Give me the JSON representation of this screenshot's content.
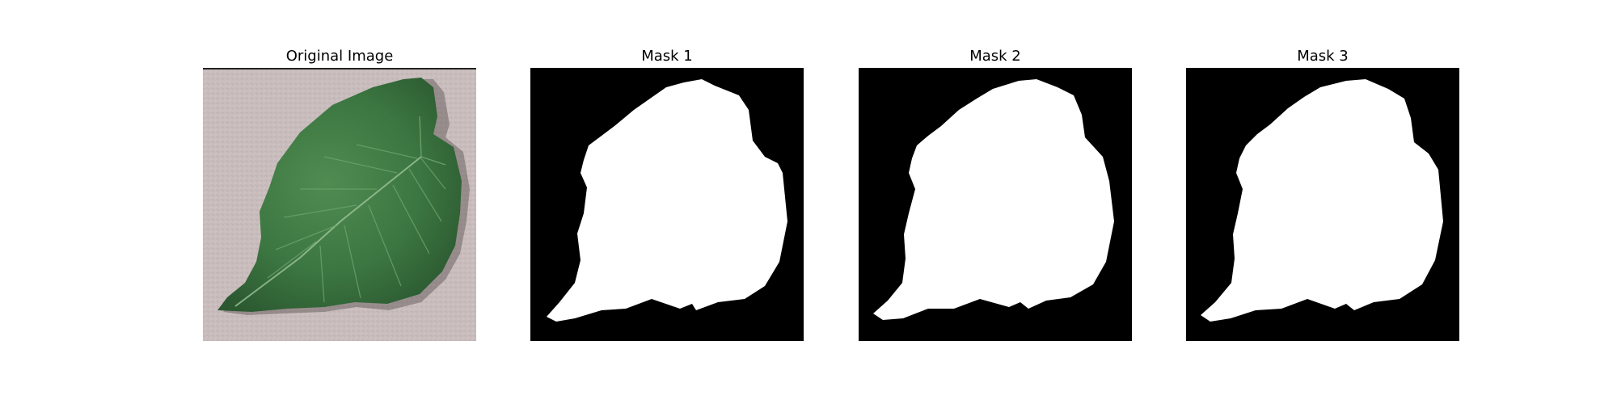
{
  "figure": {
    "panels": [
      {
        "title": "Original Image",
        "kind": "photo",
        "subject": "leaf-photo"
      },
      {
        "title": "Mask 1",
        "kind": "mask",
        "subject": "leaf-mask"
      },
      {
        "title": "Mask 2",
        "kind": "mask",
        "subject": "leaf-mask"
      },
      {
        "title": "Mask 3",
        "kind": "mask",
        "subject": "leaf-mask"
      }
    ],
    "colors": {
      "background": "#ffffff",
      "mask_background": "#000000",
      "mask_foreground": "#ffffff",
      "photo_background": "#c8bcbc",
      "leaf_dark": "#2f5f34",
      "leaf_mid": "#3f7a45",
      "leaf_light": "#5c9a5f"
    }
  }
}
